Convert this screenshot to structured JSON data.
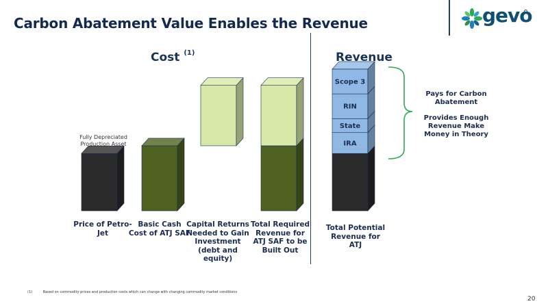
{
  "title": "Carbon Abatement Value Enables the Revenue",
  "logo": {
    "text": "gevo",
    "icon": "gevo-leaf-logo-icon"
  },
  "sections": {
    "cost": "Cost",
    "cost_footnote_marker": "(1)",
    "revenue": "Revenue"
  },
  "annotation": "Fully Depreciated Production Asset",
  "brace_text": {
    "line1": "Pays for Carbon Abatement",
    "line2": "Provides Enough Revenue Make Money in Theory"
  },
  "footnote": {
    "marker": "(1)",
    "text": "Based on commodity prices and production costs which can change with changing commodity market conditions"
  },
  "page_number": "20",
  "chart_data": {
    "type": "bar",
    "stacked": true,
    "style": "3d-columns",
    "categories": [
      "Price of Petro-Jet",
      "Basic Cash Cost of ATJ SAF",
      "Capital Returns Needed to Gain Investment (debt and equity)",
      "Total Required Revenue for ATJ SAF to be Built Out",
      "Total Potential Revenue for ATJ"
    ],
    "groups": [
      "cost",
      "cost",
      "cost",
      "cost",
      "revenue"
    ],
    "bars": [
      {
        "segments": [
          {
            "label": "",
            "base": 0,
            "value": 74,
            "color": "#2a2a2a"
          }
        ]
      },
      {
        "segments": [
          {
            "label": "",
            "base": 0,
            "value": 84,
            "color": "#4f6121"
          }
        ]
      },
      {
        "segments": [
          {
            "label": "",
            "base": 84,
            "value": 78,
            "color": "#d8e8a8"
          }
        ]
      },
      {
        "segments": [
          {
            "label": "",
            "base": 0,
            "value": 84,
            "color": "#4f6121"
          },
          {
            "label": "",
            "base": 84,
            "value": 78,
            "color": "#d8e8a8"
          }
        ]
      },
      {
        "segments": [
          {
            "label": "",
            "base": 0,
            "value": 74,
            "color": "#2a2a2a"
          },
          {
            "label": "IRA",
            "base": 74,
            "value": 27,
            "color": "#8fb8e4"
          },
          {
            "label": "State",
            "base": 101,
            "value": 18,
            "color": "#8fb8e4"
          },
          {
            "label": "RIN",
            "base": 119,
            "value": 32,
            "color": "#8fb8e4"
          },
          {
            "label": "Scope 3",
            "base": 151,
            "value": 32,
            "color": "#8fb8e4"
          }
        ]
      }
    ],
    "ylim": [
      0,
      190
    ],
    "grid": false,
    "legend": "none",
    "colors": {
      "outline": "#1b2d4e",
      "brace": "#2eaa52"
    }
  }
}
